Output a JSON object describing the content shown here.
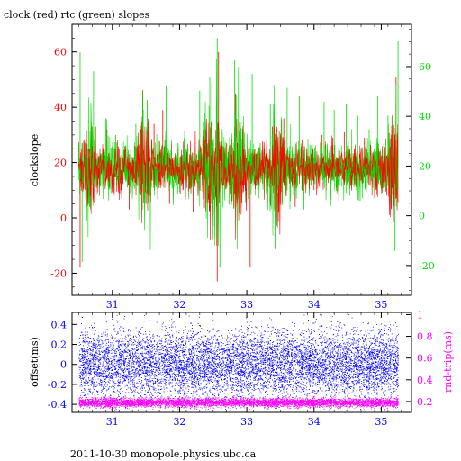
{
  "header": {
    "title": "clock (red) rtc (green) slopes"
  },
  "footer": {
    "text": "2011-10-30  monopole.physics.ubc.ca"
  },
  "colors": {
    "clock": "#ff0000",
    "rtc": "#00e000",
    "offset": "#0000ff",
    "rndtrip": "#ff00ff",
    "axis": "#000000"
  },
  "chart_data": [
    {
      "type": "line",
      "title": "clock (red) rtc (green) slopes",
      "xlim": [
        30.4,
        35.45
      ],
      "x_ticks": [
        31,
        32,
        33,
        34,
        35
      ],
      "ylabel": "clockslope",
      "ylim": [
        -28,
        70
      ],
      "y_ticks": [
        -20,
        0,
        20,
        40,
        60
      ],
      "y2lim": [
        -32,
        77
      ],
      "y2_ticks": [
        -20,
        0,
        20,
        40,
        60
      ],
      "grid": false,
      "series": [
        {
          "name": "clock (red)",
          "baseline": 18,
          "spread": 4,
          "x_range": [
            30.5,
            35.25
          ]
        },
        {
          "name": "rtc (green)",
          "baseline": 18,
          "spread": 5,
          "x_range": [
            30.5,
            35.25
          ]
        }
      ],
      "clock_spikes": [
        [
          30.52,
          -18
        ],
        [
          30.55,
          27
        ],
        [
          30.62,
          4
        ],
        [
          30.75,
          33
        ],
        [
          30.92,
          32
        ],
        [
          31.1,
          25
        ],
        [
          31.25,
          3
        ],
        [
          31.42,
          32
        ],
        [
          31.5,
          5
        ],
        [
          31.62,
          34
        ],
        [
          31.75,
          39
        ],
        [
          31.85,
          5
        ],
        [
          32.05,
          10
        ],
        [
          32.2,
          2
        ],
        [
          32.35,
          44
        ],
        [
          32.48,
          49
        ],
        [
          32.5,
          1
        ],
        [
          32.56,
          -23
        ],
        [
          32.58,
          60
        ],
        [
          32.7,
          27
        ],
        [
          32.78,
          6
        ],
        [
          32.83,
          45
        ],
        [
          33.05,
          -18
        ],
        [
          33.15,
          14
        ],
        [
          33.3,
          4
        ],
        [
          33.38,
          33
        ],
        [
          33.55,
          36
        ],
        [
          33.72,
          4
        ],
        [
          33.82,
          28
        ],
        [
          34.0,
          10
        ],
        [
          34.12,
          30
        ],
        [
          34.28,
          29
        ],
        [
          34.45,
          31
        ],
        [
          34.6,
          25
        ],
        [
          34.75,
          29
        ],
        [
          34.9,
          23
        ],
        [
          35.0,
          10
        ],
        [
          35.15,
          30
        ],
        [
          35.22,
          51
        ]
      ],
      "rtc_spikes": [
        [
          30.52,
          60
        ],
        [
          30.55,
          -16
        ],
        [
          30.62,
          18
        ],
        [
          30.72,
          53
        ],
        [
          30.9,
          36
        ],
        [
          31.05,
          30
        ],
        [
          31.2,
          26
        ],
        [
          31.35,
          34
        ],
        [
          31.45,
          46
        ],
        [
          31.55,
          9
        ],
        [
          31.68,
          43
        ],
        [
          31.8,
          48
        ],
        [
          31.92,
          21
        ],
        [
          32.08,
          11
        ],
        [
          32.3,
          46
        ],
        [
          32.45,
          51
        ],
        [
          32.5,
          -3
        ],
        [
          32.56,
          65
        ],
        [
          32.6,
          -18
        ],
        [
          32.75,
          48
        ],
        [
          32.82,
          57
        ],
        [
          32.98,
          20
        ],
        [
          33.08,
          52
        ],
        [
          33.2,
          27
        ],
        [
          33.35,
          41
        ],
        [
          33.42,
          -11
        ],
        [
          33.6,
          47
        ],
        [
          33.78,
          44
        ],
        [
          33.85,
          3
        ],
        [
          34.02,
          22
        ],
        [
          34.15,
          42
        ],
        [
          34.3,
          39
        ],
        [
          34.48,
          41
        ],
        [
          34.65,
          37
        ],
        [
          34.82,
          32
        ],
        [
          34.95,
          44
        ],
        [
          35.1,
          37
        ],
        [
          35.2,
          -12
        ],
        [
          35.25,
          64
        ]
      ]
    },
    {
      "type": "scatter",
      "xlim": [
        30.4,
        35.45
      ],
      "x_ticks": [
        31,
        32,
        33,
        34,
        35
      ],
      "ylabel": "offset(ms)",
      "ylim": [
        -0.48,
        0.52
      ],
      "y_ticks": [
        -0.4,
        -0.2,
        0,
        0.2,
        0.4
      ],
      "y2label": "rnd-trip(ms)",
      "y2lim": [
        0.1,
        1.02
      ],
      "y2_ticks": [
        0.2,
        0.4,
        0.6,
        0.8,
        1
      ],
      "grid": false,
      "series": [
        {
          "name": "offset",
          "baseline": 0,
          "spread": 0.17
        },
        {
          "name": "rnd-trip",
          "baseline": 0.19,
          "spread": 0.02
        }
      ]
    }
  ]
}
